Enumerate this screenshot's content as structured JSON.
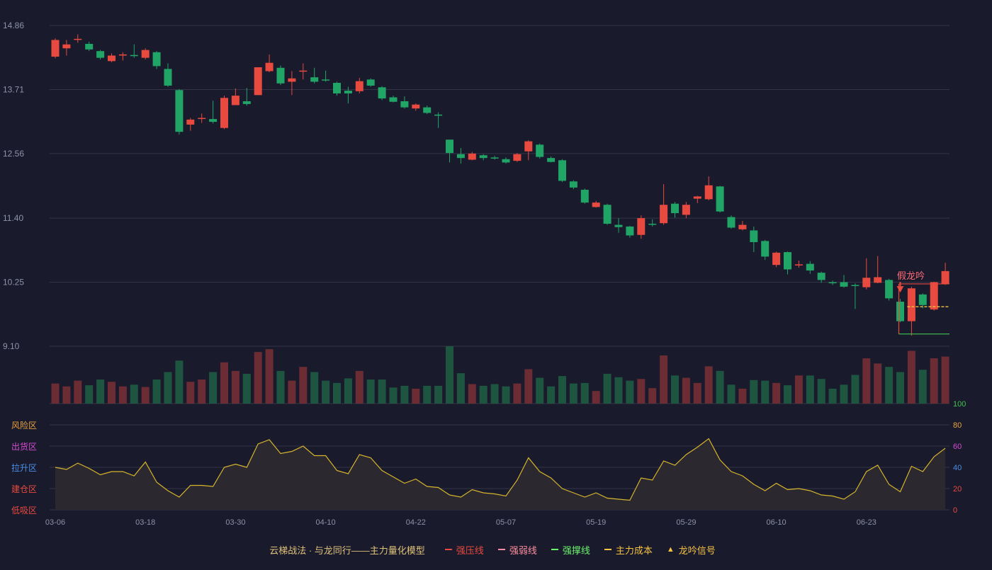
{
  "chart_data": {
    "type": "candlestick",
    "title": "",
    "price_axis": {
      "ticks": [
        "14.86",
        "13.71",
        "12.56",
        "11.40",
        "10.25",
        "9.10"
      ],
      "min": 9.1,
      "max": 14.86
    },
    "x_tick_labels": [
      {
        "index": 0,
        "label": "03-06"
      },
      {
        "index": 8,
        "label": "03-18"
      },
      {
        "index": 16,
        "label": "03-30"
      },
      {
        "index": 24,
        "label": "04-10"
      },
      {
        "index": 32,
        "label": "04-22"
      },
      {
        "index": 40,
        "label": "05-07"
      },
      {
        "index": 48,
        "label": "05-19"
      },
      {
        "index": 56,
        "label": "05-29"
      },
      {
        "index": 64,
        "label": "06-10"
      },
      {
        "index": 72,
        "label": "06-23"
      }
    ],
    "candles": [
      {
        "o": 14.3,
        "c": 14.6,
        "h": 14.63,
        "l": 14.27
      },
      {
        "o": 14.45,
        "c": 14.52,
        "h": 14.6,
        "l": 14.32
      },
      {
        "o": 14.62,
        "c": 14.62,
        "h": 14.7,
        "l": 14.55
      },
      {
        "o": 14.53,
        "c": 14.43,
        "h": 14.57,
        "l": 14.4
      },
      {
        "o": 14.4,
        "c": 14.28,
        "h": 14.42,
        "l": 14.25
      },
      {
        "o": 14.22,
        "c": 14.32,
        "h": 14.36,
        "l": 14.2
      },
      {
        "o": 14.32,
        "c": 14.34,
        "h": 14.38,
        "l": 14.23
      },
      {
        "o": 14.33,
        "c": 14.31,
        "h": 14.52,
        "l": 14.28
      },
      {
        "o": 14.28,
        "c": 14.42,
        "h": 14.45,
        "l": 14.25
      },
      {
        "o": 14.38,
        "c": 14.13,
        "h": 14.4,
        "l": 14.08
      },
      {
        "o": 14.08,
        "c": 13.78,
        "h": 14.18,
        "l": 13.76
      },
      {
        "o": 13.7,
        "c": 12.95,
        "h": 13.72,
        "l": 12.9
      },
      {
        "o": 13.08,
        "c": 13.17,
        "h": 13.2,
        "l": 12.97
      },
      {
        "o": 13.19,
        "c": 13.2,
        "h": 13.28,
        "l": 13.11
      },
      {
        "o": 13.18,
        "c": 13.13,
        "h": 13.51,
        "l": 13.1
      },
      {
        "o": 13.02,
        "c": 13.56,
        "h": 13.6,
        "l": 13.0
      },
      {
        "o": 13.43,
        "c": 13.6,
        "h": 13.73,
        "l": 13.43
      },
      {
        "o": 13.5,
        "c": 13.45,
        "h": 13.74,
        "l": 13.42
      },
      {
        "o": 13.61,
        "c": 14.11,
        "h": 14.11,
        "l": 13.61
      },
      {
        "o": 14.04,
        "c": 14.19,
        "h": 14.34,
        "l": 14.02
      },
      {
        "o": 14.1,
        "c": 13.82,
        "h": 14.14,
        "l": 13.79
      },
      {
        "o": 13.85,
        "c": 13.91,
        "h": 14.04,
        "l": 13.61
      },
      {
        "o": 14.04,
        "c": 14.05,
        "h": 14.18,
        "l": 13.89
      },
      {
        "o": 13.93,
        "c": 13.85,
        "h": 14.1,
        "l": 13.82
      },
      {
        "o": 13.89,
        "c": 13.88,
        "h": 14.05,
        "l": 13.85
      },
      {
        "o": 13.83,
        "c": 13.64,
        "h": 13.85,
        "l": 13.6
      },
      {
        "o": 13.69,
        "c": 13.64,
        "h": 13.76,
        "l": 13.46
      },
      {
        "o": 13.68,
        "c": 13.86,
        "h": 13.92,
        "l": 13.64
      },
      {
        "o": 13.89,
        "c": 13.78,
        "h": 13.91,
        "l": 13.76
      },
      {
        "o": 13.75,
        "c": 13.55,
        "h": 13.77,
        "l": 13.52
      },
      {
        "o": 13.57,
        "c": 13.49,
        "h": 13.6,
        "l": 13.48
      },
      {
        "o": 13.5,
        "c": 13.39,
        "h": 13.59,
        "l": 13.37
      },
      {
        "o": 13.37,
        "c": 13.44,
        "h": 13.46,
        "l": 13.33
      },
      {
        "o": 13.39,
        "c": 13.29,
        "h": 13.42,
        "l": 13.27
      },
      {
        "o": 13.26,
        "c": 13.24,
        "h": 13.3,
        "l": 13.02
      },
      {
        "o": 12.81,
        "c": 12.57,
        "h": 12.81,
        "l": 12.4
      },
      {
        "o": 12.55,
        "c": 12.48,
        "h": 12.66,
        "l": 12.38
      },
      {
        "o": 12.45,
        "c": 12.56,
        "h": 12.59,
        "l": 12.44
      },
      {
        "o": 12.53,
        "c": 12.48,
        "h": 12.55,
        "l": 12.44
      },
      {
        "o": 12.49,
        "c": 12.47,
        "h": 12.52,
        "l": 12.45
      },
      {
        "o": 12.46,
        "c": 12.4,
        "h": 12.49,
        "l": 12.38
      },
      {
        "o": 12.43,
        "c": 12.55,
        "h": 12.57,
        "l": 12.41
      },
      {
        "o": 12.6,
        "c": 12.78,
        "h": 12.8,
        "l": 12.44
      },
      {
        "o": 12.72,
        "c": 12.5,
        "h": 12.74,
        "l": 12.47
      },
      {
        "o": 12.48,
        "c": 12.41,
        "h": 12.51,
        "l": 12.4
      },
      {
        "o": 12.44,
        "c": 12.07,
        "h": 12.46,
        "l": 12.05
      },
      {
        "o": 12.06,
        "c": 11.95,
        "h": 12.08,
        "l": 11.92
      },
      {
        "o": 11.91,
        "c": 11.68,
        "h": 11.93,
        "l": 11.66
      },
      {
        "o": 11.6,
        "c": 11.68,
        "h": 11.71,
        "l": 11.59
      },
      {
        "o": 11.64,
        "c": 11.3,
        "h": 11.66,
        "l": 11.28
      },
      {
        "o": 11.28,
        "c": 11.24,
        "h": 11.4,
        "l": 11.14
      },
      {
        "o": 11.25,
        "c": 11.09,
        "h": 11.26,
        "l": 11.05
      },
      {
        "o": 11.1,
        "c": 11.4,
        "h": 11.45,
        "l": 11.03
      },
      {
        "o": 11.3,
        "c": 11.3,
        "h": 11.38,
        "l": 11.25
      },
      {
        "o": 11.31,
        "c": 11.64,
        "h": 12.01,
        "l": 11.28
      },
      {
        "o": 11.66,
        "c": 11.49,
        "h": 11.69,
        "l": 11.41
      },
      {
        "o": 11.46,
        "c": 11.64,
        "h": 11.69,
        "l": 11.4
      },
      {
        "o": 11.75,
        "c": 11.79,
        "h": 11.8,
        "l": 11.67
      },
      {
        "o": 11.74,
        "c": 11.99,
        "h": 12.15,
        "l": 11.72
      },
      {
        "o": 11.97,
        "c": 11.52,
        "h": 11.98,
        "l": 11.5
      },
      {
        "o": 11.42,
        "c": 11.23,
        "h": 11.45,
        "l": 11.21
      },
      {
        "o": 11.2,
        "c": 11.28,
        "h": 11.35,
        "l": 11.18
      },
      {
        "o": 11.18,
        "c": 10.97,
        "h": 11.25,
        "l": 10.79
      },
      {
        "o": 10.99,
        "c": 10.71,
        "h": 11.01,
        "l": 10.65
      },
      {
        "o": 10.56,
        "c": 10.78,
        "h": 10.8,
        "l": 10.52
      },
      {
        "o": 10.79,
        "c": 10.48,
        "h": 10.8,
        "l": 10.39
      },
      {
        "o": 10.57,
        "c": 10.57,
        "h": 10.64,
        "l": 10.51
      },
      {
        "o": 10.58,
        "c": 10.46,
        "h": 10.63,
        "l": 10.4
      },
      {
        "o": 10.42,
        "c": 10.29,
        "h": 10.44,
        "l": 10.24
      },
      {
        "o": 10.25,
        "c": 10.24,
        "h": 10.28,
        "l": 10.2
      },
      {
        "o": 10.25,
        "c": 10.17,
        "h": 10.38,
        "l": 10.15
      },
      {
        "o": 10.2,
        "c": 10.19,
        "h": 10.23,
        "l": 9.77
      },
      {
        "o": 10.16,
        "c": 10.33,
        "h": 10.68,
        "l": 10.12
      },
      {
        "o": 10.24,
        "c": 10.34,
        "h": 10.72,
        "l": 10.23
      },
      {
        "o": 10.29,
        "c": 9.96,
        "h": 10.31,
        "l": 9.92
      },
      {
        "o": 9.9,
        "c": 9.55,
        "h": 9.95,
        "l": 9.53
      },
      {
        "o": 9.55,
        "c": 10.14,
        "h": 10.17,
        "l": 9.29
      },
      {
        "o": 10.03,
        "c": 9.84,
        "h": 10.05,
        "l": 9.78
      },
      {
        "o": 9.76,
        "c": 10.25,
        "h": 10.26,
        "l": 9.74
      },
      {
        "o": 10.22,
        "c": 10.45,
        "h": 10.6,
        "l": 10.2
      }
    ],
    "volume": [
      35,
      30,
      40,
      32,
      42,
      38,
      30,
      33,
      29,
      42,
      55,
      75,
      38,
      42,
      55,
      72,
      57,
      52,
      90,
      95,
      57,
      40,
      64,
      55,
      40,
      36,
      44,
      57,
      42,
      42,
      28,
      31,
      26,
      31,
      31,
      100,
      53,
      34,
      31,
      34,
      30,
      35,
      60,
      45,
      30,
      48,
      35,
      36,
      22,
      52,
      46,
      40,
      43,
      27,
      84,
      49,
      45,
      36,
      65,
      57,
      33,
      26,
      41,
      40,
      36,
      32,
      49,
      49,
      43,
      26,
      33,
      50,
      79,
      70,
      64,
      55,
      92,
      59,
      79,
      82
    ],
    "indicator": {
      "range": [
        0,
        100
      ],
      "right_ticks": [
        "100",
        "80",
        "60",
        "40",
        "20",
        "0"
      ],
      "zones": [
        "风险区",
        "出货区",
        "拉升区",
        "建仓区",
        "低吸区"
      ],
      "values": [
        40,
        38,
        44,
        39,
        33,
        36,
        36,
        32,
        45,
        26,
        18,
        12,
        23,
        23,
        22,
        40,
        43,
        40,
        62,
        66,
        53,
        55,
        60,
        51,
        51,
        37,
        34,
        52,
        49,
        37,
        31,
        25,
        29,
        22,
        21,
        14,
        12,
        19,
        16,
        15,
        13,
        28,
        49,
        36,
        30,
        20,
        16,
        12,
        16,
        11,
        10,
        9,
        30,
        28,
        46,
        42,
        52,
        59,
        67,
        47,
        36,
        32,
        24,
        18,
        25,
        19,
        20,
        18,
        14,
        13,
        10,
        17,
        36,
        42,
        24,
        17,
        41,
        36,
        50,
        58
      ]
    },
    "annotations": {
      "signal_label": "假龙吟",
      "signal_index": 75,
      "strong_pressure": {
        "price": 10.22,
        "from_index": 75
      },
      "support": {
        "price": 9.32,
        "from_index": 75
      },
      "main_cost": {
        "price": 9.81,
        "from_index": 76
      }
    },
    "colors": {
      "up": "#e84a3f",
      "down": "#21a566",
      "vol_up": "#6b2c33",
      "vol_down": "#1d5540",
      "grid": "#343549",
      "axis_text": "#8f91a6",
      "indicator_line": "#d6b52c",
      "indicator_fill": "#2d2b30",
      "pressure": "#e84a3f",
      "support": "#3fc34f",
      "cost": "#f5c242",
      "zone_risk": "#e8a33f",
      "zone_dist": "#d44bd4",
      "zone_rise": "#4a90e8",
      "zone_build": "#e84a3f",
      "zone_low": "#e84a3f",
      "tick_100": "#3fc34f",
      "tick_80": "#e8a33f",
      "tick_60": "#d44bd4",
      "tick_40": "#4a90e8",
      "tick_20": "#e84a3f",
      "tick_0": "#e84a3f"
    }
  },
  "legend": {
    "title": "云梯战法 · 与龙同行——主力量化模型",
    "items": [
      {
        "label": "强压线",
        "color": "#e84a3f",
        "style": "solid"
      },
      {
        "label": "强弱线",
        "color": "#ff8fa0",
        "style": "dashed"
      },
      {
        "label": "强撑线",
        "color": "#6cf56c",
        "style": "solid"
      },
      {
        "label": "主力成本",
        "color": "#f5c242",
        "style": "dashed"
      },
      {
        "label": "龙吟信号",
        "color": "#f5c242",
        "style": "triangle"
      }
    ]
  }
}
